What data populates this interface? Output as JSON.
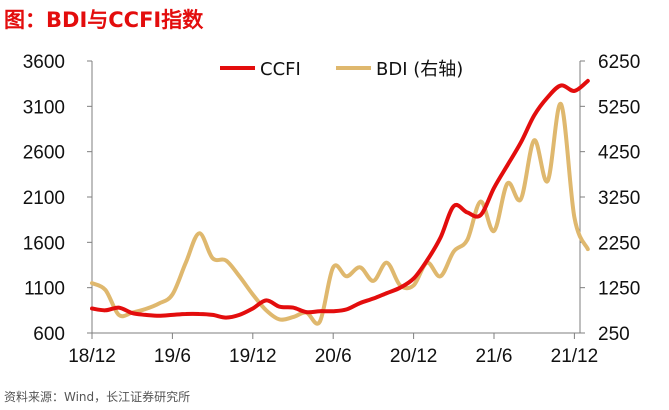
{
  "title": "图：BDI与CCFI指数",
  "source": "资料来源：Wind，长江证券研究所",
  "colors": {
    "CCFI": "#e30d0d",
    "BDI": "#dfb86e"
  },
  "chart_data": {
    "type": "line",
    "title": "图：BDI与CCFI指数",
    "x_ticks": [
      "18/12",
      "19/6",
      "19/12",
      "20/6",
      "20/12",
      "21/6",
      "21/12"
    ],
    "y_left": {
      "ticks": [
        600,
        1100,
        1600,
        2100,
        2600,
        3100,
        3600
      ],
      "ylim": [
        600,
        3600
      ]
    },
    "y_right": {
      "ticks": [
        250,
        1250,
        2250,
        3250,
        4250,
        5250,
        6250
      ],
      "ylim": [
        250,
        6250
      ]
    },
    "legend_position": "top",
    "grid": false,
    "series": [
      {
        "name": "CCFI",
        "axis": "left",
        "x": [
          "2018-12",
          "2019-01",
          "2019-02",
          "2019-03",
          "2019-04",
          "2019-05",
          "2019-06",
          "2019-07",
          "2019-08",
          "2019-09",
          "2019-10",
          "2019-11",
          "2019-12",
          "2020-01",
          "2020-02",
          "2020-03",
          "2020-04",
          "2020-05",
          "2020-06",
          "2020-07",
          "2020-08",
          "2020-09",
          "2020-10",
          "2020-11",
          "2020-12",
          "2021-01",
          "2021-02",
          "2021-03",
          "2021-04",
          "2021-05",
          "2021-06",
          "2021-07",
          "2021-08",
          "2021-09",
          "2021-10",
          "2021-11",
          "2021-12",
          "2022-01"
        ],
        "values": [
          870,
          850,
          880,
          820,
          800,
          790,
          800,
          810,
          810,
          800,
          770,
          800,
          870,
          960,
          890,
          880,
          830,
          840,
          840,
          860,
          930,
          980,
          1040,
          1100,
          1200,
          1400,
          1650,
          2000,
          1930,
          1900,
          2200,
          2450,
          2700,
          3000,
          3200,
          3330,
          3270,
          3380
        ]
      },
      {
        "name": "BDI (右轴)",
        "axis": "right",
        "x": [
          "2018-12",
          "2019-01",
          "2019-02",
          "2019-03",
          "2019-04",
          "2019-05",
          "2019-06",
          "2019-07",
          "2019-08",
          "2019-09",
          "2019-10",
          "2019-11",
          "2019-12",
          "2020-01",
          "2020-02",
          "2020-03",
          "2020-04",
          "2020-05",
          "2020-06",
          "2020-07",
          "2020-08",
          "2020-09",
          "2020-10",
          "2020-11",
          "2020-12",
          "2021-01",
          "2021-02",
          "2021-03",
          "2021-04",
          "2021-05",
          "2021-06",
          "2021-07",
          "2021-08",
          "2021-09",
          "2021-10",
          "2021-11",
          "2021-12",
          "2022-01"
        ],
        "values": [
          1350,
          1200,
          650,
          700,
          780,
          900,
          1100,
          1800,
          2450,
          1900,
          1850,
          1500,
          1100,
          750,
          550,
          600,
          700,
          500,
          1700,
          1500,
          1700,
          1400,
          1800,
          1300,
          1300,
          1800,
          1500,
          2050,
          2300,
          3150,
          2500,
          3550,
          3200,
          4500,
          3600,
          5300,
          2800,
          2100
        ]
      }
    ]
  }
}
